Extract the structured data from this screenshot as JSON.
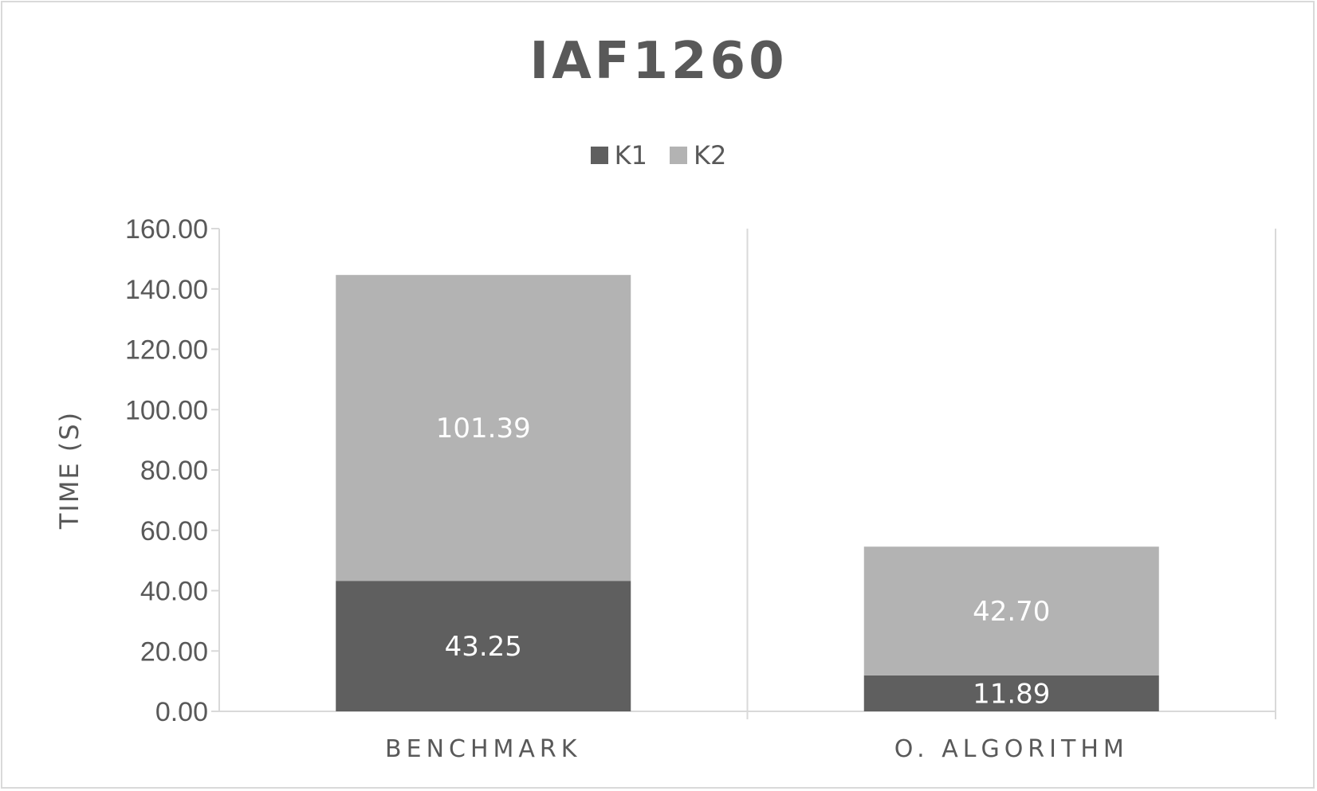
{
  "chart_data": {
    "type": "bar",
    "stacked": true,
    "title": "IAF1260",
    "xlabel": "",
    "ylabel": "TIME (S)",
    "categories": [
      "BENCHMARK",
      "O. ALGORITHM"
    ],
    "series": [
      {
        "name": "K1",
        "values": [
          43.25,
          11.89
        ],
        "color": "#5f5f5f",
        "label_color": "#ffffff"
      },
      {
        "name": "K2",
        "values": [
          101.39,
          42.7
        ],
        "color": "#b3b3b3",
        "label_color": "#ffffff"
      }
    ],
    "ylim": [
      0,
      160
    ],
    "yticks": [
      0,
      20,
      40,
      60,
      80,
      100,
      120,
      140,
      160
    ],
    "ytick_labels": [
      "0.00",
      "20.00",
      "40.00",
      "60.00",
      "80.00",
      "100.00",
      "120.00",
      "140.00",
      "160.00"
    ],
    "data_labels": [
      [
        "43.25",
        "11.89"
      ],
      [
        "101.39",
        "42.70"
      ]
    ],
    "legend_position": "top",
    "grid": false,
    "axis_color": "#d9d9d9"
  }
}
